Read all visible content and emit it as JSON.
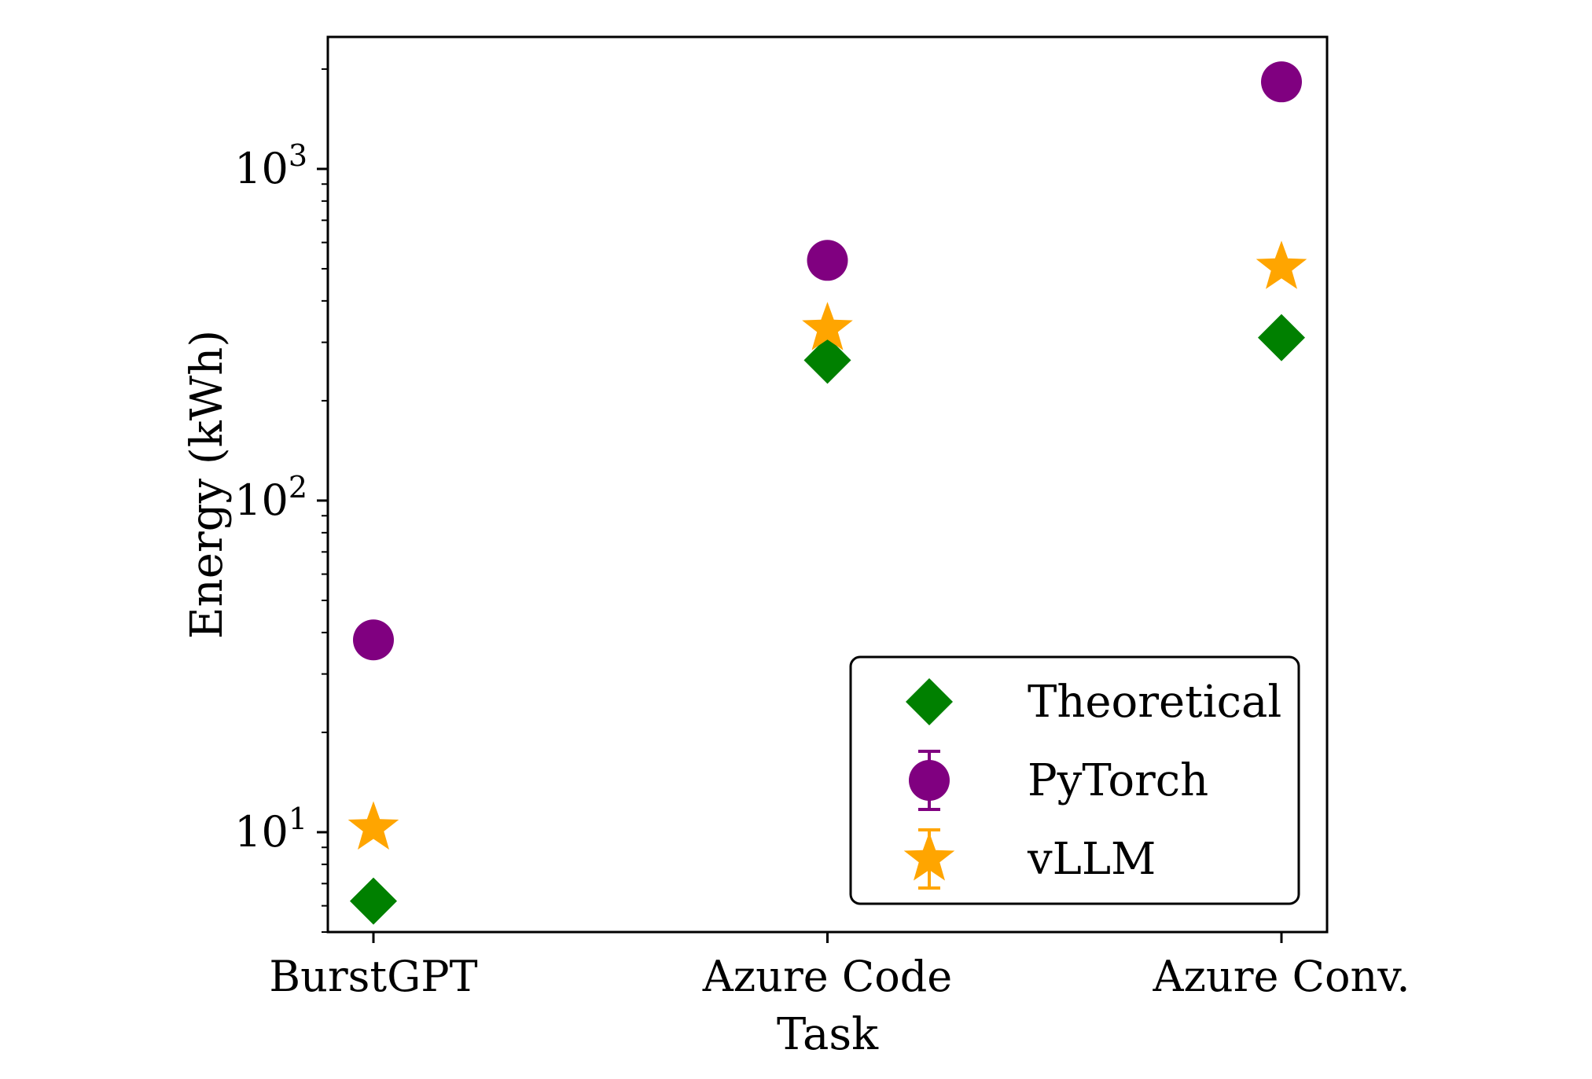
{
  "chart_data": {
    "type": "scatter",
    "title": "",
    "xlabel": "Task",
    "ylabel": "Energy (kWh)",
    "categories": [
      "BurstGPT",
      "Azure Code",
      "Azure Conv."
    ],
    "yscale": "log",
    "ylim": [
      5,
      2500
    ],
    "yticks": [
      {
        "value": 10,
        "base": "10",
        "exp": "1"
      },
      {
        "value": 100,
        "base": "10",
        "exp": "2"
      },
      {
        "value": 1000,
        "base": "10",
        "exp": "3"
      }
    ],
    "grid": false,
    "legend_position": "lower-right",
    "series": [
      {
        "name": "Theoretical",
        "marker": "diamond",
        "color": "#008000",
        "values": [
          6.2,
          265,
          310
        ]
      },
      {
        "name": "PyTorch",
        "marker": "circle",
        "color": "#800080",
        "error_bars": true,
        "values": [
          38,
          530,
          1830
        ]
      },
      {
        "name": "vLLM",
        "marker": "star",
        "color": "#FFA500",
        "error_bars": true,
        "values": [
          10.3,
          330,
          505
        ]
      }
    ]
  }
}
